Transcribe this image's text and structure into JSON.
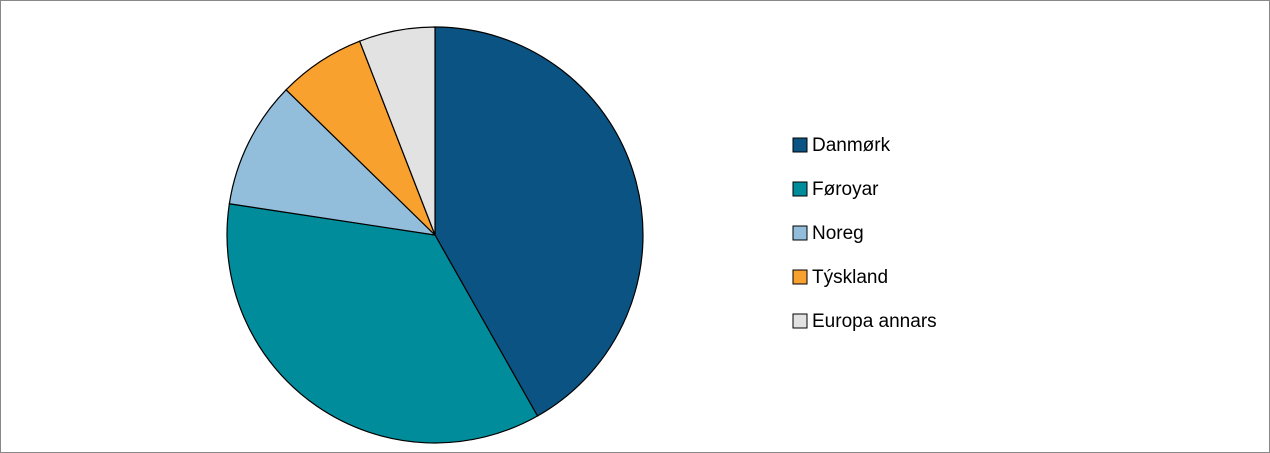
{
  "chart_data": {
    "type": "pie",
    "categories": [
      "Danmørk",
      "Føroyar",
      "Noreg",
      "Týskland",
      "Europa annars"
    ],
    "values": [
      41.8,
      35.6,
      9.9,
      6.8,
      5.9
    ],
    "colors": [
      "#0b5383",
      "#008c9a",
      "#92bedb",
      "#f9a12f",
      "#e2e2e2"
    ],
    "legend": "right"
  }
}
